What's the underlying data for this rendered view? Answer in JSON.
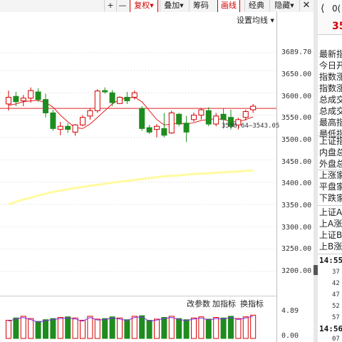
{
  "toolbar": {
    "buttons": [
      {
        "label": "+",
        "name": "zoom-in-button"
      },
      {
        "label": "—",
        "name": "zoom-out-button"
      },
      {
        "label": "复权",
        "name": "adjust-button"
      },
      {
        "label": "叠加",
        "name": "overlay-button"
      },
      {
        "label": "筹码",
        "name": "chips-button"
      },
      {
        "label": "画线",
        "name": "draw-line-button"
      },
      {
        "label": "经典",
        "name": "classic-button"
      },
      {
        "label": "隐藏",
        "name": "hide-button"
      }
    ]
  },
  "settings_label": "设置均线",
  "price_annotation": "3538.64—3543.05",
  "volume_tools": {
    "change_params": "改参数",
    "add_indicator": "加指标",
    "switch_indicator": "换指标"
  },
  "colors": {
    "up": "#d40000",
    "down": "#1e8c1e",
    "ma_red": "#e02020",
    "ma_yellow": "#fffaa0",
    "accent": "#d40000"
  },
  "chart_data": [
    {
      "type": "candlestick",
      "y_ticks": [
        "3689.70",
        "3650.00",
        "3600.00",
        "3550.00",
        "3500.00",
        "3450.00",
        "3400.00",
        "3350.00",
        "3300.00",
        "3250.00",
        "3200.00"
      ],
      "ylim": [
        3200,
        3689.7
      ],
      "candles": [
        {
          "o": 3575,
          "h": 3605,
          "l": 3560,
          "c": 3590
        },
        {
          "o": 3592,
          "h": 3602,
          "l": 3570,
          "c": 3580
        },
        {
          "o": 3582,
          "h": 3595,
          "l": 3570,
          "c": 3588
        },
        {
          "o": 3588,
          "h": 3612,
          "l": 3578,
          "c": 3605
        },
        {
          "o": 3602,
          "h": 3610,
          "l": 3580,
          "c": 3585
        },
        {
          "o": 3585,
          "h": 3598,
          "l": 3545,
          "c": 3555
        },
        {
          "o": 3555,
          "h": 3562,
          "l": 3515,
          "c": 3520
        },
        {
          "o": 3518,
          "h": 3535,
          "l": 3505,
          "c": 3525
        },
        {
          "o": 3525,
          "h": 3532,
          "l": 3510,
          "c": 3518
        },
        {
          "o": 3512,
          "h": 3530,
          "l": 3504,
          "c": 3528
        },
        {
          "o": 3528,
          "h": 3550,
          "l": 3525,
          "c": 3545
        },
        {
          "o": 3548,
          "h": 3566,
          "l": 3540,
          "c": 3560
        },
        {
          "o": 3560,
          "h": 3608,
          "l": 3555,
          "c": 3604
        },
        {
          "o": 3605,
          "h": 3612,
          "l": 3598,
          "c": 3602
        },
        {
          "o": 3600,
          "h": 3606,
          "l": 3570,
          "c": 3578
        },
        {
          "o": 3576,
          "h": 3592,
          "l": 3575,
          "c": 3590
        },
        {
          "o": 3590,
          "h": 3602,
          "l": 3575,
          "c": 3582
        },
        {
          "o": 3590,
          "h": 3605,
          "l": 3585,
          "c": 3600
        },
        {
          "o": 3565,
          "h": 3570,
          "l": 3515,
          "c": 3520
        },
        {
          "o": 3522,
          "h": 3528,
          "l": 3508,
          "c": 3512
        },
        {
          "o": 3518,
          "h": 3530,
          "l": 3500,
          "c": 3525
        },
        {
          "o": 3520,
          "h": 3555,
          "l": 3500,
          "c": 3505
        },
        {
          "o": 3510,
          "h": 3560,
          "l": 3508,
          "c": 3555
        },
        {
          "o": 3552,
          "h": 3555,
          "l": 3525,
          "c": 3530
        },
        {
          "o": 3532,
          "h": 3548,
          "l": 3490,
          "c": 3512
        },
        {
          "o": 3540,
          "h": 3556,
          "l": 3535,
          "c": 3550
        },
        {
          "o": 3550,
          "h": 3566,
          "l": 3540,
          "c": 3562
        },
        {
          "o": 3560,
          "h": 3568,
          "l": 3525,
          "c": 3530
        },
        {
          "o": 3530,
          "h": 3555,
          "l": 3525,
          "c": 3548
        },
        {
          "o": 3552,
          "h": 3565,
          "l": 3520,
          "c": 3540
        },
        {
          "o": 3545,
          "h": 3562,
          "l": 3518,
          "c": 3525
        },
        {
          "o": 3528,
          "h": 3544,
          "l": 3518,
          "c": 3540
        },
        {
          "o": 3545,
          "h": 3562,
          "l": 3538,
          "c": 3558
        },
        {
          "o": 3562,
          "h": 3575,
          "l": 3555,
          "c": 3570
        }
      ],
      "ma_short": [
        3572,
        3575,
        3580,
        3582,
        3583,
        3578,
        3568,
        3550,
        3535,
        3522,
        3520,
        3530,
        3545,
        3560,
        3575,
        3585,
        3588,
        3590,
        3580,
        3560,
        3540,
        3528,
        3530,
        3532,
        3530,
        3533,
        3538,
        3540,
        3542,
        3540,
        3536,
        3535,
        3540,
        3546
      ],
      "ma_long": [
        3350,
        3356,
        3361,
        3365,
        3370,
        3374,
        3378,
        3381,
        3384,
        3387,
        3389,
        3392,
        3394,
        3396,
        3399,
        3401,
        3403,
        3405,
        3407,
        3409,
        3411,
        3413,
        3414,
        3415,
        3417,
        3418,
        3419,
        3420,
        3421,
        3422,
        3423,
        3424,
        3425,
        3426
      ],
      "hline": 3565
    },
    {
      "type": "bar",
      "y_ticks": [
        "4.89",
        "0.00"
      ],
      "ylim": [
        0,
        4.89
      ],
      "values": [
        3.2,
        3.6,
        3.9,
        3.5,
        3.0,
        3.3,
        3.5,
        3.7,
        3.8,
        3.6,
        3.2,
        3.9,
        3.4,
        3.5,
        3.8,
        3.6,
        3.3,
        3.9,
        4.0,
        3.2,
        3.4,
        3.7,
        3.9,
        3.5,
        3.3,
        3.6,
        3.8,
        3.4,
        3.7,
        3.6,
        3.9,
        3.5,
        3.8,
        4.1
      ],
      "up": [
        true,
        false,
        true,
        true,
        false,
        false,
        false,
        true,
        false,
        true,
        true,
        true,
        true,
        false,
        false,
        true,
        false,
        true,
        false,
        false,
        true,
        false,
        true,
        false,
        false,
        true,
        true,
        false,
        true,
        false,
        false,
        true,
        true,
        true
      ]
    }
  ],
  "right_panel": {
    "code": "0(",
    "price": "35",
    "rows": [
      "最新指",
      "今日开",
      "指数涨",
      "指数涨",
      "总成交",
      "总成交",
      "最高指",
      "最低指",
      "上证指",
      "内盘总",
      "外盘总",
      "上涨家",
      "平盘家",
      "下跌家",
      "上证A",
      "上A涨",
      "上证B",
      "上B涨"
    ],
    "ticks": [
      {
        "time": "14:55",
        "items": [
          "37",
          "42",
          "47",
          "52",
          "57"
        ]
      },
      {
        "time": "14:56",
        "items": [
          "07"
        ]
      }
    ]
  }
}
